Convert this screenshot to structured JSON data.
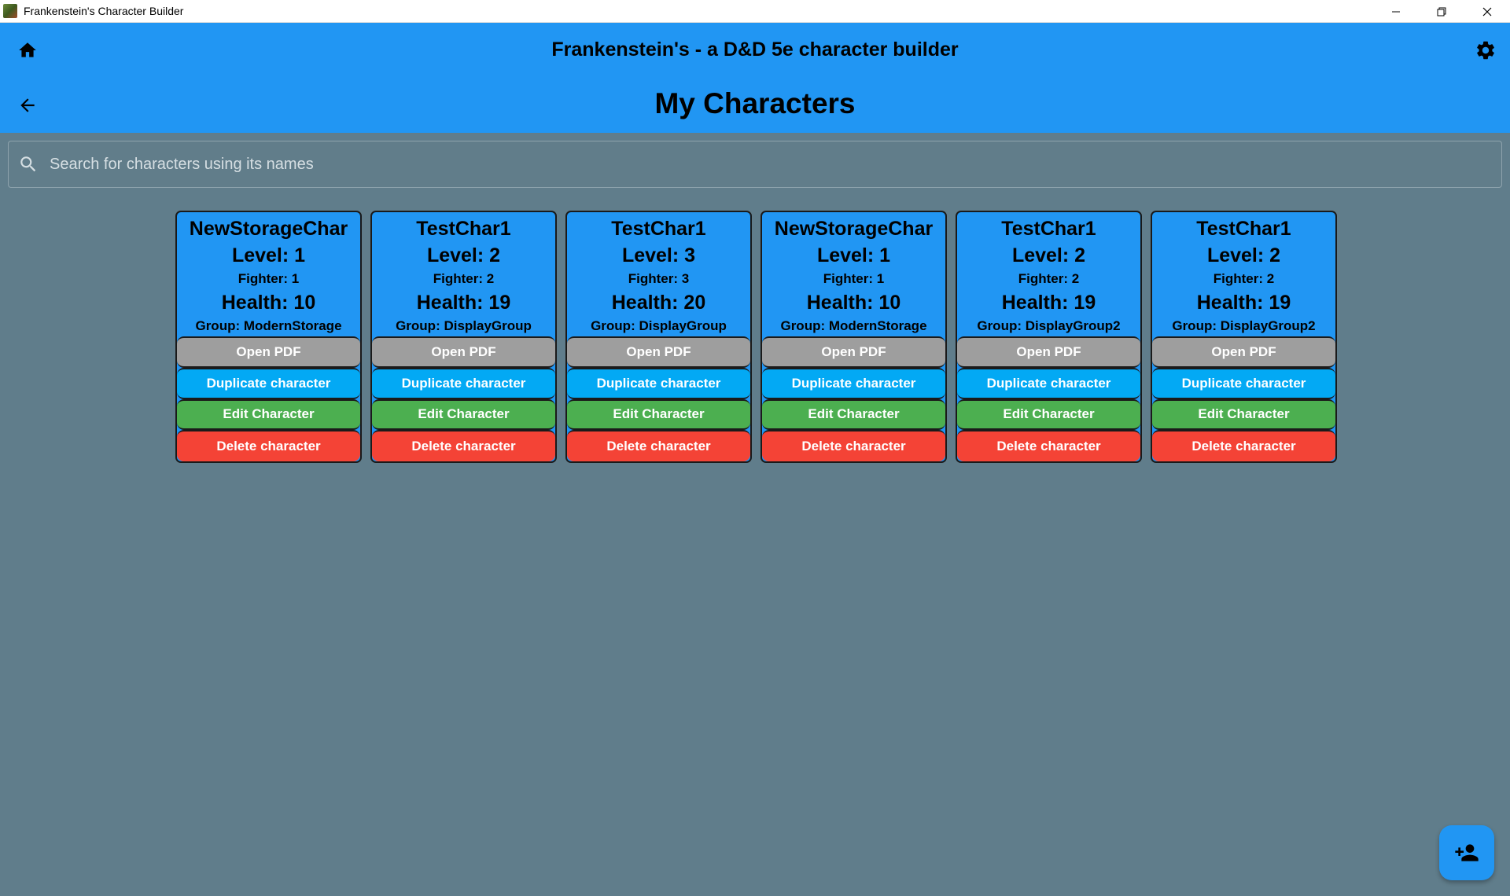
{
  "window": {
    "title": "Frankenstein's Character Builder"
  },
  "header": {
    "app_title": "Frankenstein's - a D&D 5e character builder",
    "page_title": "My Characters"
  },
  "search": {
    "placeholder": "Search for characters using its names",
    "value": ""
  },
  "colors": {
    "header": "#2196f3",
    "background": "#607d8b",
    "open_pdf": "#9e9e9e",
    "duplicate": "#03a9f4",
    "edit": "#4caf50",
    "delete": "#f44336"
  },
  "buttons": {
    "open_pdf": "Open PDF",
    "duplicate": "Duplicate character",
    "edit": "Edit Character",
    "delete": "Delete character"
  },
  "characters": [
    {
      "name": "NewStorageChar",
      "level": "Level: 1",
      "class": "Fighter: 1",
      "health": "Health: 10",
      "group": "Group: ModernStorage"
    },
    {
      "name": "TestChar1",
      "level": "Level: 2",
      "class": "Fighter: 2",
      "health": "Health: 19",
      "group": "Group: DisplayGroup"
    },
    {
      "name": "TestChar1",
      "level": "Level: 3",
      "class": "Fighter: 3",
      "health": "Health: 20",
      "group": "Group: DisplayGroup"
    },
    {
      "name": "NewStorageChar",
      "level": "Level: 1",
      "class": "Fighter: 1",
      "health": "Health: 10",
      "group": "Group: ModernStorage"
    },
    {
      "name": "TestChar1",
      "level": "Level: 2",
      "class": "Fighter: 2",
      "health": "Health: 19",
      "group": "Group: DisplayGroup2"
    },
    {
      "name": "TestChar1",
      "level": "Level: 2",
      "class": "Fighter: 2",
      "health": "Health: 19",
      "group": "Group: DisplayGroup2"
    }
  ],
  "icons": {
    "home": "home-icon",
    "back": "arrow-back-icon",
    "settings": "gear-icon",
    "search": "search-icon",
    "fab": "add-person-icon"
  }
}
